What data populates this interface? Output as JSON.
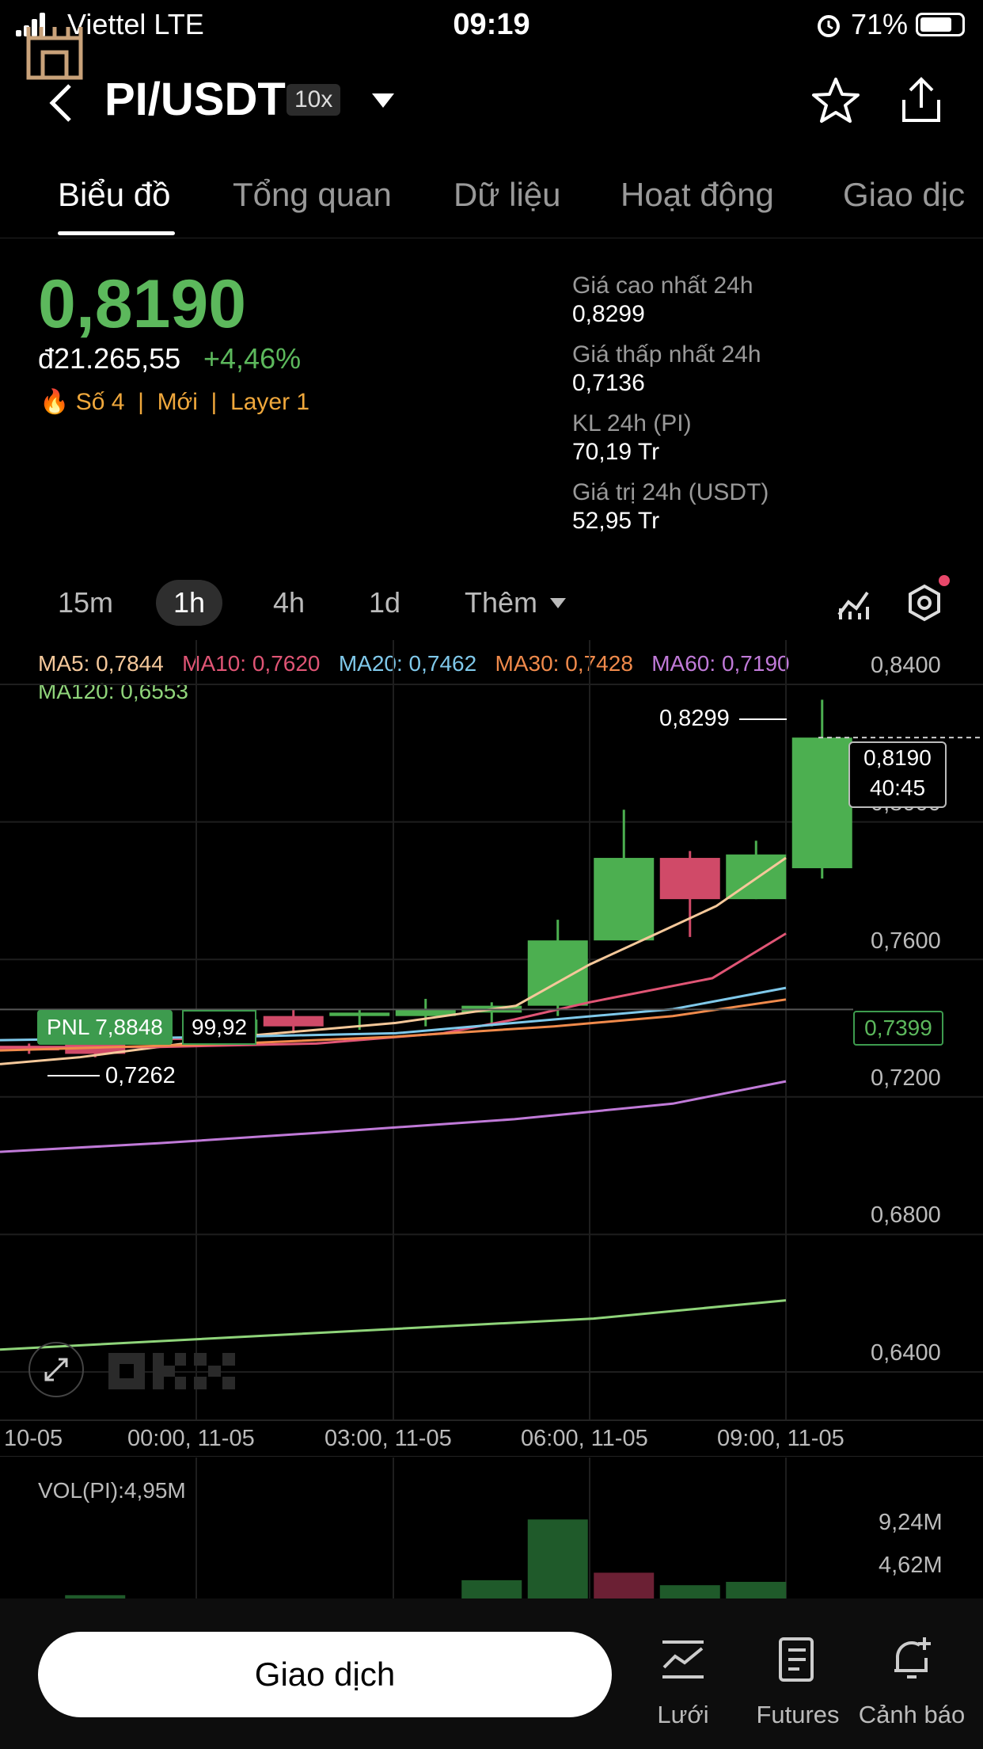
{
  "status_bar": {
    "carrier": "Viettel  LTE",
    "time": "09:19",
    "battery_pct": "71%"
  },
  "header": {
    "pair": "PI/USDT",
    "leverage": "10x"
  },
  "tabs": [
    "Biểu đồ",
    "Tổng quan",
    "Dữ liệu",
    "Hoạt động",
    "Giao dịc"
  ],
  "ticker": {
    "price": "0,8190",
    "fiat": "đ21.265,55",
    "change": "+4,46%",
    "tags": [
      "Số 4",
      "Mới",
      "Layer 1"
    ],
    "stats": [
      {
        "label": "Giá cao nhất 24h",
        "value": "0,8299"
      },
      {
        "label": "Giá thấp nhất 24h",
        "value": "0,7136"
      },
      {
        "label": "KL 24h (PI)",
        "value": "70,19 Tr"
      },
      {
        "label": "Giá trị 24h (USDT)",
        "value": "52,95 Tr"
      }
    ]
  },
  "intervals": [
    "15m",
    "1h",
    "4h",
    "1d",
    "Thêm"
  ],
  "ma": {
    "ma5": {
      "label": "MA5:",
      "value": "0,7844",
      "color": "#f5c89a"
    },
    "ma10": {
      "label": "MA10:",
      "value": "0,7620",
      "color": "#e05575"
    },
    "ma20": {
      "label": "MA20:",
      "value": "0,7462",
      "color": "#7fc8ea"
    },
    "ma30": {
      "label": "MA30:",
      "value": "0,7428",
      "color": "#f08a4b"
    },
    "ma60": {
      "label": "MA60:",
      "value": "0,7190",
      "color": "#c07ad8"
    },
    "ma120": {
      "label": "MA120:",
      "value": "0,6553",
      "color": "#8fd47a"
    }
  },
  "chart": {
    "high_marker": "0,8299",
    "low_marker": "0,7262",
    "current_price": "0,8190",
    "countdown": "40:45",
    "pnl_label": "PNL 7,8848",
    "pnl_value": "99,92",
    "entry_price": "0,7399",
    "y_ticks": [
      "0,8400",
      "0,8000",
      "0,7600",
      "0,7200",
      "0,6800",
      "0,6400"
    ],
    "x_ticks": [
      "10-05",
      "00:00, 11-05",
      "03:00, 11-05",
      "06:00, 11-05",
      "09:00, 11-05"
    ],
    "watermark": "OKX"
  },
  "chart_data": {
    "type": "candlestick",
    "ylim": [
      0.62,
      0.85
    ],
    "ticks_y": [
      0.84,
      0.8,
      0.76,
      0.72,
      0.68,
      0.64
    ],
    "candles": [
      {
        "o": 0.729,
        "h": 0.73,
        "l": 0.727,
        "c": 0.728
      },
      {
        "o": 0.73,
        "h": 0.731,
        "l": 0.726,
        "c": 0.727
      },
      {
        "o": 0.732,
        "h": 0.734,
        "l": 0.729,
        "c": 0.731
      },
      {
        "o": 0.732,
        "h": 0.737,
        "l": 0.731,
        "c": 0.737
      },
      {
        "o": 0.738,
        "h": 0.74,
        "l": 0.733,
        "c": 0.735
      },
      {
        "o": 0.738,
        "h": 0.74,
        "l": 0.734,
        "c": 0.739
      },
      {
        "o": 0.738,
        "h": 0.743,
        "l": 0.735,
        "c": 0.74
      },
      {
        "o": 0.739,
        "h": 0.742,
        "l": 0.735,
        "c": 0.741
      },
      {
        "o": 0.741,
        "h": 0.766,
        "l": 0.738,
        "c": 0.76
      },
      {
        "o": 0.76,
        "h": 0.798,
        "l": 0.76,
        "c": 0.784
      },
      {
        "o": 0.784,
        "h": 0.786,
        "l": 0.761,
        "c": 0.772
      },
      {
        "o": 0.772,
        "h": 0.789,
        "l": 0.772,
        "c": 0.785
      },
      {
        "o": 0.781,
        "h": 0.83,
        "l": 0.778,
        "c": 0.819
      }
    ],
    "volume_ticks": [
      "9,24M",
      "4,62M"
    ],
    "volume_label": "VOL(PI):4,95M"
  },
  "bottom": {
    "trade": "Giao dịch",
    "nav": [
      "Lưới",
      "Futures",
      "Cảnh báo"
    ]
  }
}
